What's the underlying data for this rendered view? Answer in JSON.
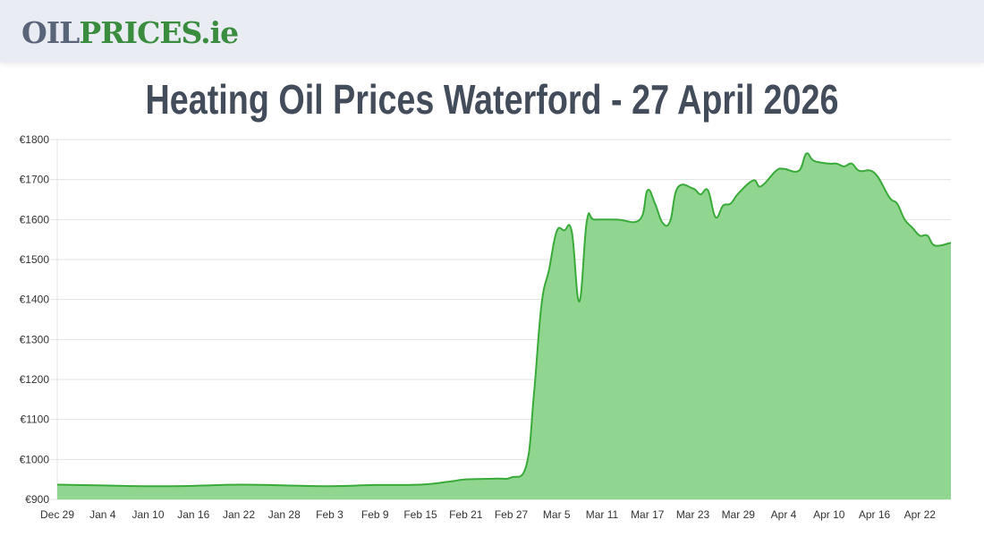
{
  "header": {
    "logo_part1": "OIL",
    "logo_part2": "PRICES.ie",
    "logo_colors": {
      "oil": "#5a6478",
      "prices": "#3a8c3f"
    }
  },
  "page_title": "Heating Oil Prices Waterford - 27 April 2026",
  "chart_data": {
    "type": "area",
    "title": "Heating Oil Prices Waterford - 27 April 2026",
    "xlabel": "",
    "ylabel": "",
    "ylim": [
      900,
      1800
    ],
    "grid": true,
    "legend": "none",
    "line_color": "#3aaa3a",
    "fill_color": "#90d690",
    "y_ticks": [
      "€900",
      "€1000",
      "€1100",
      "€1200",
      "€1300",
      "€1400",
      "€1500",
      "€1600",
      "€1700",
      "€1800"
    ],
    "x_ticks": [
      "Dec 29",
      "Jan 4",
      "Jan 10",
      "Jan 16",
      "Jan 22",
      "Jan 28",
      "Feb 3",
      "Feb 9",
      "Feb 15",
      "Feb 21",
      "Feb 27",
      "Mar 5",
      "Mar 11",
      "Mar 17",
      "Mar 23",
      "Mar 29",
      "Apr 4",
      "Apr 10",
      "Apr 16",
      "Apr 22"
    ],
    "x": [
      "Dec 29",
      "Jan 4",
      "Jan 10",
      "Jan 16",
      "Jan 22",
      "Jan 28",
      "Feb 3",
      "Feb 9",
      "Feb 15",
      "Feb 19",
      "Feb 21",
      "Feb 25",
      "Feb 27",
      "Mar 1",
      "Mar 2",
      "Mar 3",
      "Mar 4",
      "Mar 5",
      "Mar 6",
      "Mar 7",
      "Mar 8",
      "Mar 9",
      "Mar 10",
      "Mar 13",
      "Mar 16",
      "Mar 17",
      "Mar 18",
      "Mar 19",
      "Mar 20",
      "Mar 21",
      "Mar 23",
      "Mar 24",
      "Mar 25",
      "Mar 26",
      "Mar 27",
      "Mar 28",
      "Mar 29",
      "Mar 31",
      "Apr 1",
      "Apr 3",
      "Apr 4",
      "Apr 6",
      "Apr 7",
      "Apr 8",
      "Apr 10",
      "Apr 11",
      "Apr 12",
      "Apr 13",
      "Apr 14",
      "Apr 16",
      "Apr 18",
      "Apr 19",
      "Apr 20",
      "Apr 21",
      "Apr 22",
      "Apr 23",
      "Apr 24",
      "Apr 27"
    ],
    "values": [
      937,
      935,
      933,
      934,
      937,
      935,
      933,
      936,
      937,
      945,
      950,
      952,
      955,
      985,
      1163,
      1387,
      1475,
      1570,
      1573,
      1570,
      1395,
      1597,
      1600,
      1600,
      1600,
      1673,
      1640,
      1592,
      1596,
      1680,
      1678,
      1663,
      1673,
      1606,
      1635,
      1640,
      1665,
      1698,
      1683,
      1722,
      1727,
      1722,
      1765,
      1747,
      1740,
      1740,
      1733,
      1740,
      1722,
      1717,
      1655,
      1640,
      1600,
      1580,
      1560,
      1560,
      1535,
      1542
    ]
  }
}
